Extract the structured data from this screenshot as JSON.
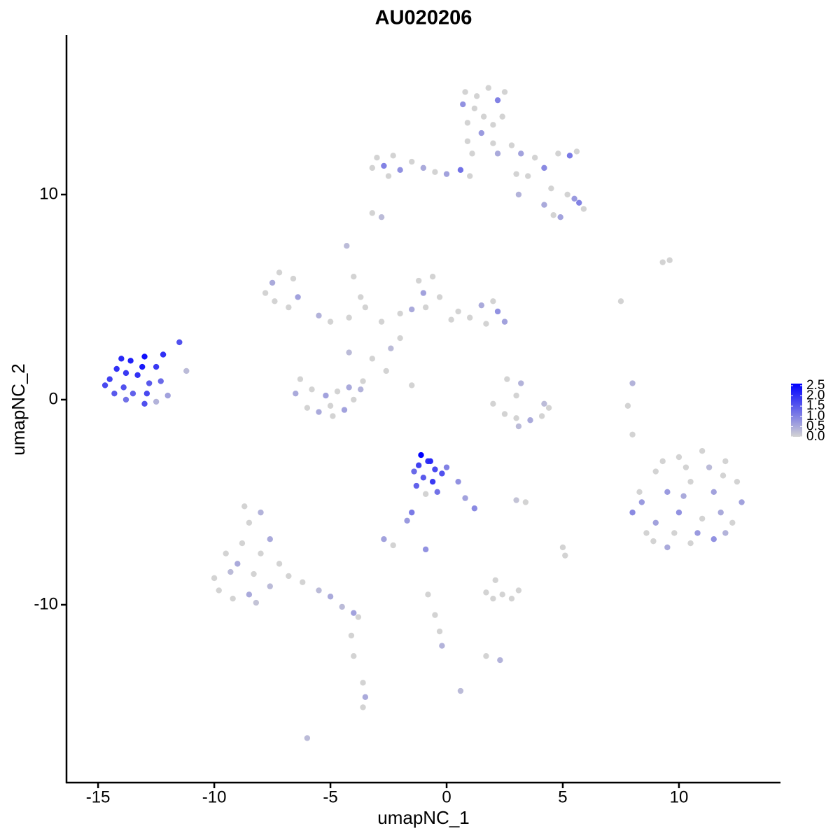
{
  "chart_data": {
    "type": "scatter",
    "title": "AU020206",
    "x_label": "umapNC_1",
    "y_label": "umapNC_2",
    "xlim": [
      -16.36,
      14.37
    ],
    "ylim": [
      -18.67,
      17.78
    ],
    "xticks": [
      -15,
      -10,
      -5,
      0,
      5,
      10
    ],
    "yticks": [
      -10,
      0,
      10
    ],
    "colors": [
      "#d3d3d3",
      "#0000ff"
    ],
    "colorlim": [
      0,
      2.6
    ],
    "color_ticks": [
      {
        "value": 2.5,
        "label": "2.5"
      },
      {
        "value": 2.0,
        "label": "2.0"
      },
      {
        "value": 1.5,
        "label": "1.5"
      },
      {
        "value": 1.0,
        "label": "1.0"
      },
      {
        "value": 0.5,
        "label": "0.5"
      },
      {
        "value": 0,
        "label": "0.0"
      }
    ],
    "x": [
      -14.5,
      -14.2,
      -13.9,
      -13.6,
      -13.3,
      -13.0,
      -12.8,
      -14.7,
      -14.0,
      -13.5,
      -12.5,
      -12.3,
      -13.1,
      -14.3,
      -12.0,
      -12.5,
      -11.5,
      -12.2,
      -13.8,
      -12.9,
      -11.2,
      -3.0,
      -2.7,
      -2.3,
      -2.0,
      -1.5,
      -1.0,
      -0.5,
      0.0,
      0.6,
      1.0,
      -3.2,
      -2.5,
      0.8,
      1.2,
      1.8,
      2.2,
      0.9,
      1.5,
      2.4,
      2.0,
      1.1,
      2.5,
      0.7,
      1.6,
      2.8,
      3.2,
      3.8,
      4.2,
      4.8,
      5.3,
      5.6,
      3.5,
      4.5,
      5.2,
      5.7,
      5.9,
      5.5,
      4.2,
      4.6,
      4.9,
      3.1,
      2.2,
      1.3,
      2.0,
      0.9,
      3.0,
      -7.5,
      -7.8,
      -7.2,
      -6.6,
      -6.4,
      -6.8,
      -7.4,
      -5.5,
      -5.0,
      -4.2,
      -3.5,
      -2.8,
      -2.0,
      -1.5,
      -1.2,
      -1.0,
      -0.6,
      -0.3,
      -0.9,
      0.5,
      1.0,
      1.5,
      2.0,
      2.2,
      2.5,
      1.7,
      0.2,
      -4.3,
      -4.0,
      -3.7,
      -2.0,
      -2.4,
      -3.2,
      -2.6,
      -1.5,
      -4.2,
      -6.3,
      -6.5,
      -6.0,
      -5.5,
      -5.0,
      -4.4,
      -4.0,
      -3.7,
      -3.6,
      -5.8,
      -5.2,
      -4.7,
      -4.2,
      -4.9,
      2.6,
      3.2,
      3.0,
      2.0,
      2.5,
      3.0,
      3.6,
      4.1,
      4.4,
      4.2,
      -1.1,
      -1.2,
      -0.8,
      -0.5,
      -1.0,
      -0.6,
      -0.2,
      -1.3,
      -0.4,
      0.0,
      0.5,
      0.8,
      1.2,
      -1.5,
      -1.7,
      -0.9,
      -0.7,
      -1.4,
      9.0,
      10.0,
      11.0,
      12.0,
      12.5,
      12.7,
      12.3,
      11.5,
      10.5,
      9.5,
      8.6,
      8.0,
      8.3,
      9.5,
      10.5,
      11.5,
      10.0,
      11.0,
      9.0,
      11.8,
      10.3,
      9.3,
      11.9,
      8.4,
      10.8,
      9.8,
      12.0,
      8.9,
      11.3,
      10.2,
      -10.0,
      -9.8,
      -9.2,
      -8.5,
      -8.8,
      -9.0,
      -8.3,
      -8.0,
      -8.5,
      -8.7,
      -8.0,
      -7.6,
      -7.2,
      -7.6,
      -9.5,
      -6.8,
      -6.2,
      -5.5,
      -5.0,
      -4.5,
      -4.0,
      -3.8,
      -4.1,
      -4.0,
      -3.6,
      -3.5,
      -3.6,
      -8.2,
      -9.3,
      1.7,
      2.0,
      2.4,
      2.8,
      3.1,
      2.1,
      -0.8,
      -0.5,
      -0.3,
      -0.2,
      1.7,
      2.3,
      0.6,
      -6.0,
      -2.7,
      -2.3,
      -0.9,
      3.0,
      3.4,
      5.0,
      5.1,
      3.1,
      8.0,
      7.8,
      8.0,
      7.5,
      9.3,
      9.6,
      -2.8,
      -3.2,
      -13.8,
      -13.0
    ],
    "y": [
      1.0,
      1.5,
      0.6,
      1.9,
      1.2,
      2.1,
      0.8,
      0.7,
      2.0,
      0.3,
      1.6,
      0.9,
      1.6,
      0.3,
      0.2,
      -0.1,
      2.8,
      2.2,
      1.3,
      0.3,
      1.4,
      11.8,
      11.4,
      11.9,
      11.2,
      11.6,
      11.3,
      11.1,
      11.0,
      11.2,
      10.9,
      11.3,
      10.9,
      15.0,
      14.2,
      15.2,
      14.6,
      13.5,
      13.0,
      13.8,
      12.5,
      12.0,
      15.0,
      14.4,
      13.8,
      12.4,
      12.0,
      11.8,
      11.3,
      12.0,
      11.9,
      12.1,
      10.9,
      10.3,
      10.0,
      9.6,
      9.3,
      9.8,
      9.5,
      9.0,
      8.9,
      10.0,
      12.0,
      14.8,
      13.4,
      12.6,
      11.0,
      5.7,
      5.2,
      6.2,
      5.9,
      5.0,
      4.5,
      4.8,
      4.1,
      3.8,
      4.0,
      4.5,
      3.8,
      4.2,
      4.4,
      5.8,
      5.2,
      6.0,
      5.0,
      4.5,
      4.3,
      4.0,
      4.6,
      4.8,
      4.3,
      3.8,
      3.7,
      3.9,
      7.5,
      6.0,
      5.0,
      3.0,
      2.5,
      2.0,
      1.4,
      0.7,
      2.3,
      1.0,
      0.3,
      -0.4,
      -0.6,
      -0.3,
      -0.5,
      0.0,
      0.5,
      0.9,
      0.5,
      0.2,
      0.4,
      0.6,
      -0.8,
      1.0,
      0.8,
      0.2,
      -0.2,
      -0.7,
      -0.9,
      -1.0,
      -0.8,
      -0.4,
      -0.2,
      -2.7,
      -3.2,
      -3.0,
      -3.4,
      -3.8,
      -4.0,
      -3.6,
      -4.2,
      -4.5,
      -3.3,
      -4.0,
      -4.8,
      -5.3,
      -5.5,
      -5.9,
      -4.6,
      -3.0,
      -3.5,
      -3.5,
      -2.8,
      -2.5,
      -3.0,
      -4.0,
      -5.0,
      -6.0,
      -6.8,
      -7.0,
      -7.2,
      -6.5,
      -5.5,
      -4.5,
      -4.5,
      -4.0,
      -4.5,
      -5.5,
      -5.8,
      -6.0,
      -5.5,
      -3.3,
      -3.0,
      -3.7,
      -5.0,
      -6.5,
      -6.5,
      -6.5,
      -6.9,
      -3.3,
      -4.7,
      -8.7,
      -9.3,
      -9.7,
      -9.5,
      -7.0,
      -8.0,
      -8.5,
      -7.5,
      -6.0,
      -5.2,
      -5.5,
      -6.8,
      -8.0,
      -9.1,
      -7.5,
      -8.6,
      -8.9,
      -9.3,
      -9.6,
      -10.1,
      -10.4,
      -10.6,
      -11.5,
      -12.5,
      -13.8,
      -14.5,
      -15.0,
      -9.9,
      -8.4,
      -9.4,
      -9.7,
      -9.5,
      -9.7,
      -9.3,
      -8.8,
      -9.5,
      -10.5,
      -11.3,
      -12.0,
      -12.5,
      -12.7,
      -14.2,
      -16.5,
      -6.8,
      -7.1,
      -7.3,
      -4.9,
      -5.0,
      -7.2,
      -7.6,
      -1.3,
      0.8,
      -0.3,
      -1.7,
      4.8,
      6.7,
      6.8,
      8.9,
      9.1,
      0.0,
      -0.2
    ],
    "values": [
      1.8,
      2.0,
      1.6,
      2.2,
      2.0,
      2.4,
      1.5,
      1.7,
      2.1,
      1.4,
      1.9,
      1.3,
      2.3,
      1.5,
      0.6,
      0.4,
      1.6,
      2.0,
      1.9,
      1.7,
      0.3,
      0,
      1.0,
      0,
      0.8,
      0,
      0.5,
      0,
      0.6,
      1.2,
      0,
      0,
      0,
      0,
      0,
      0,
      1.0,
      0,
      0.7,
      0,
      0,
      0,
      0,
      0.8,
      0,
      0,
      0.6,
      0,
      0.9,
      0,
      1.1,
      0,
      0,
      0,
      0,
      1.0,
      0,
      0.7,
      0.5,
      0,
      0.6,
      0.4,
      0.5,
      0,
      0,
      0,
      0,
      0.5,
      0,
      0,
      0,
      0.6,
      0,
      0,
      0.4,
      0,
      0,
      0,
      0,
      0,
      0.5,
      0,
      0.6,
      0,
      0,
      0,
      0,
      0,
      0.5,
      0,
      0.8,
      0.6,
      0,
      0,
      0.3,
      0,
      0,
      0,
      0.3,
      0,
      0,
      0,
      0.3,
      0,
      0.5,
      0,
      0.5,
      0,
      0.6,
      0,
      0.4,
      0,
      0,
      0.6,
      0,
      0.5,
      0,
      0,
      0.4,
      0,
      0,
      0,
      0,
      0.5,
      0,
      0,
      0.3,
      2.6,
      1.8,
      2.0,
      1.7,
      1.5,
      1.9,
      1.6,
      1.4,
      1.2,
      1.0,
      0.8,
      0.6,
      0.9,
      1.1,
      0.7,
      0,
      2.1,
      1.3,
      0,
      0,
      0,
      0,
      0,
      0.6,
      0,
      0.8,
      0,
      0.5,
      0,
      0.9,
      0,
      0.7,
      0,
      0.6,
      0.8,
      0,
      0.6,
      0.5,
      0,
      0,
      0,
      0.7,
      0.7,
      0,
      0.4,
      0,
      0.3,
      0.5,
      0,
      0,
      0,
      0.5,
      0,
      0.5,
      0,
      0,
      0,
      0,
      0.4,
      0.5,
      0,
      0.3,
      0,
      0,
      0,
      0.3,
      0.5,
      0.3,
      0.6,
      0,
      0,
      0,
      0,
      0.5,
      0,
      0.2,
      0.3,
      0,
      0,
      0,
      0,
      0,
      0,
      0,
      0,
      0,
      0.4,
      0,
      0.4,
      0.3,
      0.3,
      0.6,
      0,
      0.8,
      0.2,
      0,
      0,
      0,
      0.3,
      0.4,
      0,
      0,
      0,
      0,
      0,
      0.3,
      0,
      1.2,
      1.6
    ]
  }
}
